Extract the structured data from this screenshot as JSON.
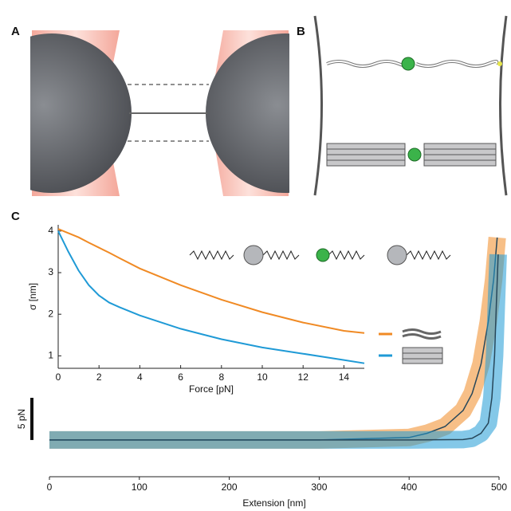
{
  "panel_labels": [
    "A",
    "B",
    "C"
  ],
  "chart_data": [
    {
      "type": "line",
      "x_label": "Extension [nm]",
      "xlim": [
        0,
        500
      ],
      "xticks": [
        0,
        100,
        200,
        300,
        400,
        500
      ],
      "ylim": [
        -3.5,
        25.5
      ],
      "scale_bar": {
        "value": 5,
        "label": "5 pN"
      },
      "series": [
        {
          "color": "#f08a24",
          "x": [
            0,
            100,
            200,
            300,
            400,
            420,
            440,
            460,
            470,
            480,
            488,
            494,
            498
          ],
          "values": [
            0,
            0,
            0,
            0,
            0.3,
            0.8,
            1.6,
            3.5,
            5.5,
            9,
            14,
            19,
            24
          ]
        },
        {
          "color": "#1f9ad6",
          "x": [
            0,
            100,
            200,
            300,
            400,
            460,
            470,
            480,
            488,
            492,
            495,
            497,
            499
          ],
          "values": [
            0,
            0,
            0,
            0,
            0,
            0.05,
            0.2,
            0.8,
            2,
            5,
            10,
            16,
            22
          ]
        }
      ]
    },
    {
      "type": "line",
      "x_label": "Force [pN]",
      "y_label": "σ [nm]",
      "xlim": [
        0,
        15
      ],
      "xticks": [
        0,
        2,
        4,
        6,
        8,
        10,
        12,
        14
      ],
      "ylim": [
        0.7,
        4.15
      ],
      "yticks": [
        1,
        2,
        3,
        4
      ],
      "x": [
        0,
        0.5,
        1,
        1.5,
        2,
        2.5,
        3,
        4,
        6,
        8,
        10,
        12,
        14,
        15
      ],
      "series": [
        {
          "color": "#f08a24",
          "values": [
            4.05,
            3.95,
            3.85,
            3.72,
            3.6,
            3.48,
            3.35,
            3.1,
            2.7,
            2.35,
            2.05,
            1.8,
            1.6,
            1.55
          ]
        },
        {
          "color": "#1f9ad6",
          "values": [
            4.0,
            3.5,
            3.05,
            2.7,
            2.45,
            2.28,
            2.17,
            1.97,
            1.65,
            1.4,
            1.2,
            1.05,
            0.9,
            0.82
          ]
        }
      ]
    }
  ]
}
